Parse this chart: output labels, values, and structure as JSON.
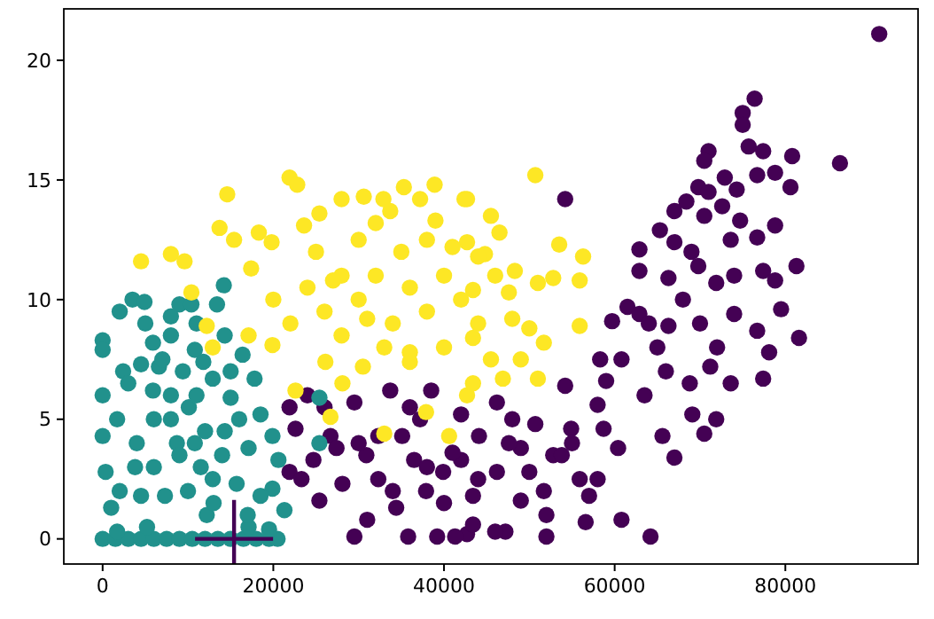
{
  "chart_data": {
    "type": "scatter",
    "xlim": [
      -4550,
      95550
    ],
    "ylim": [
      -1.05,
      22.15
    ],
    "xticks": [
      0,
      20000,
      40000,
      60000,
      80000
    ],
    "yticks": [
      0,
      5,
      10,
      15,
      20
    ],
    "grid": false,
    "marker": "circle",
    "series": [
      {
        "color": "#440154",
        "x": [
          91000,
          76400,
          75000,
          75000,
          75700,
          77400,
          80800,
          86400,
          71000,
          70500,
          78800,
          76700,
          80600,
          72900,
          74300,
          69800,
          68400,
          67000,
          72600,
          70500,
          74700,
          78800,
          65300,
          73600,
          76700,
          81300,
          67000,
          62900,
          69800,
          54200,
          62900,
          77400,
          78800,
          66300,
          61500,
          71900,
          59700,
          62900,
          66300,
          74000,
          79500,
          81600,
          76700,
          78100,
          77400,
          73600,
          71200,
          68800,
          69100,
          71900,
          70500,
          65600,
          67000,
          58300,
          60800,
          63500,
          59000,
          58000,
          58700,
          60400,
          58000,
          57000,
          60800,
          64200,
          56600,
          54200,
          54900,
          55900,
          52800,
          50700,
          46200,
          49000,
          51700,
          49000,
          47200,
          46200,
          43400,
          42700,
          44100,
          42000,
          47600,
          53800,
          21900,
          22600,
          24000,
          21900,
          23300,
          24700,
          26700,
          25400,
          29500,
          28100,
          29500,
          30900,
          32300,
          33700,
          35100,
          34400,
          35800,
          36500,
          37900,
          38500,
          39200,
          41000,
          41300,
          43400,
          39900,
          32300,
          42000,
          37200,
          27400,
          52000,
          30000,
          34000,
          38000,
          44000,
          48000,
          52000,
          40000,
          26000,
          36000,
          46000,
          31000,
          50000,
          55000,
          65000,
          68000,
          70000,
          72000,
          74000,
          66000,
          64000,
          69000,
          71000
        ],
        "values": [
          21.1,
          18.4,
          17.8,
          17.3,
          16.4,
          16.2,
          16.0,
          15.7,
          16.2,
          15.8,
          15.3,
          15.2,
          14.7,
          15.1,
          14.6,
          14.7,
          14.1,
          13.7,
          13.9,
          13.5,
          13.3,
          13.1,
          12.9,
          12.5,
          12.6,
          11.4,
          12.4,
          12.1,
          11.4,
          14.2,
          11.2,
          11.2,
          10.8,
          10.9,
          9.7,
          10.7,
          9.1,
          9.4,
          8.9,
          9.4,
          9.6,
          8.4,
          8.7,
          7.8,
          6.7,
          6.5,
          7.2,
          6.5,
          5.2,
          5.0,
          4.4,
          4.3,
          3.4,
          7.5,
          7.5,
          6.0,
          6.6,
          5.6,
          4.6,
          3.8,
          2.5,
          1.8,
          0.8,
          0.1,
          0.7,
          6.4,
          4.6,
          2.5,
          3.5,
          4.8,
          5.7,
          3.8,
          2.0,
          1.6,
          0.3,
          2.8,
          1.8,
          0.2,
          4.3,
          3.3,
          4.0,
          3.5,
          5.5,
          4.6,
          6.0,
          2.8,
          2.5,
          3.3,
          4.3,
          1.6,
          0.1,
          2.3,
          5.7,
          3.5,
          2.5,
          6.2,
          4.3,
          1.3,
          0.1,
          3.3,
          2.0,
          6.2,
          0.1,
          3.6,
          0.1,
          0.6,
          2.8,
          4.3,
          5.2,
          5.0,
          3.8,
          0.1,
          4.0,
          2.0,
          3.0,
          2.5,
          5.0,
          1.0,
          1.5,
          5.5,
          5.5,
          0.3,
          0.8,
          2.8,
          4.0,
          8.0,
          10.0,
          9.0,
          8.0,
          11.0,
          7.0,
          9.0,
          12.0,
          14.5
        ]
      },
      {
        "color": "#21918c",
        "x": [
          0,
          1500,
          3000,
          4500,
          6000,
          7500,
          9000,
          10500,
          12000,
          13500,
          15000,
          16500,
          18000,
          19500,
          20500,
          3500,
          4900,
          9000,
          10400,
          13400,
          14200,
          0,
          0,
          0,
          4500,
          5900,
          8000,
          10800,
          14300,
          16400,
          18500,
          17800,
          19900,
          20600,
          21300,
          19900,
          0,
          350,
          1000,
          1700,
          3800,
          5900,
          7300,
          8700,
          10100,
          11500,
          12900,
          14300,
          15700,
          17100,
          15000,
          12200,
          5200,
          17100,
          2400,
          6600,
          9400,
          11800,
          8000,
          4500,
          10800,
          18500,
          12900,
          1700,
          19500,
          25400,
          25400,
          2000,
          4000,
          6000,
          8000,
          10000,
          12000,
          14000,
          16000,
          6000,
          3000,
          9000,
          11000,
          13000,
          7000,
          15000,
          5000,
          11000,
          8000,
          17000,
          2000
        ],
        "values": [
          0,
          0,
          0,
          0,
          0,
          0,
          0,
          0,
          0,
          0,
          0,
          0,
          0,
          0,
          0,
          10.0,
          9.9,
          9.8,
          9.8,
          9.8,
          10.6,
          8.3,
          7.9,
          6.0,
          7.3,
          8.2,
          8.5,
          7.9,
          8.5,
          7.7,
          5.2,
          6.7,
          4.3,
          3.3,
          1.2,
          2.1,
          4.3,
          2.8,
          1.3,
          5.0,
          3.0,
          6.2,
          1.8,
          4.0,
          5.5,
          3.0,
          6.7,
          4.5,
          2.3,
          3.8,
          5.9,
          1.0,
          0.5,
          0.5,
          7.0,
          7.2,
          7.0,
          7.4,
          5.0,
          1.8,
          4.0,
          1.8,
          2.5,
          0.3,
          0.4,
          4.0,
          5.9,
          2.0,
          4.0,
          3.0,
          6.0,
          2.0,
          4.5,
          3.5,
          5.0,
          5.0,
          6.5,
          3.5,
          6.0,
          1.5,
          7.5,
          7.0,
          9.0,
          9.0,
          9.3,
          1.0,
          9.5
        ]
      },
      {
        "color": "#fde725",
        "x": [
          4500,
          8000,
          9600,
          10400,
          13700,
          14600,
          15400,
          17400,
          18300,
          19800,
          21900,
          22800,
          23600,
          25400,
          28000,
          30600,
          32900,
          35300,
          38900,
          37200,
          42400,
          33700,
          50700,
          42700,
          45500,
          46500,
          42700,
          53500,
          56300,
          44800,
          48300,
          51000,
          52800,
          55900,
          47600,
          43400,
          55900,
          51700,
          49000,
          45500,
          43400,
          51000,
          42700,
          46900,
          12900,
          17100,
          19900,
          22600,
          26100,
          26700,
          28100,
          33000,
          37900,
          40600,
          43400,
          30500,
          36000,
          12200,
          30000,
          32000,
          34000,
          36000,
          38000,
          40000,
          42000,
          35000,
          30000,
          28000,
          26000,
          24000,
          22000,
          20000,
          44000,
          46000,
          38000,
          33000,
          40000,
          28000,
          36000,
          31000,
          25000,
          44000,
          48000,
          50000,
          39000,
          32000,
          27000,
          41000
        ],
        "values": [
          11.6,
          11.9,
          11.6,
          10.3,
          13.0,
          14.4,
          12.5,
          11.3,
          12.8,
          12.4,
          15.1,
          14.8,
          13.1,
          13.6,
          14.2,
          14.3,
          14.2,
          14.7,
          14.8,
          14.2,
          14.2,
          13.7,
          15.2,
          14.2,
          13.5,
          12.8,
          12.4,
          12.3,
          11.8,
          11.9,
          11.2,
          10.7,
          10.9,
          10.8,
          10.3,
          10.4,
          8.9,
          8.2,
          7.5,
          7.5,
          8.4,
          6.7,
          6.0,
          6.7,
          8.0,
          8.5,
          8.1,
          6.2,
          7.4,
          5.1,
          6.5,
          4.4,
          5.3,
          4.3,
          6.5,
          7.2,
          7.4,
          8.9,
          10.0,
          11.0,
          9.0,
          10.5,
          9.5,
          11.0,
          10.0,
          12.0,
          12.5,
          11.0,
          9.5,
          10.5,
          9.0,
          10.0,
          9.0,
          11.0,
          12.5,
          8.0,
          8.0,
          8.5,
          7.8,
          9.2,
          12.0,
          11.8,
          9.2,
          8.8,
          13.3,
          13.2,
          10.8,
          12.2
        ]
      },
      {
        "color": "#440154",
        "marker": "cross",
        "x": [
          15400
        ],
        "values": [
          0
        ]
      }
    ]
  }
}
